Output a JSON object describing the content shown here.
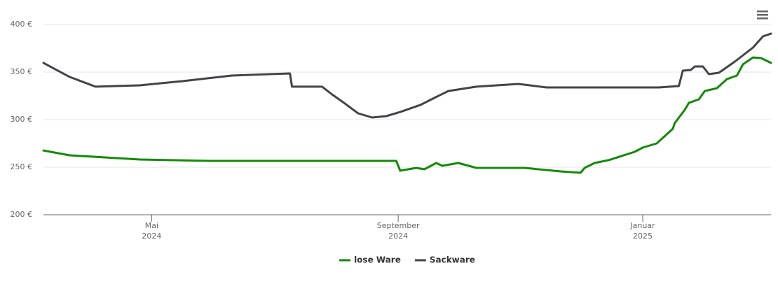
{
  "chart_data": {
    "type": "line",
    "xlim": [
      "2024-03-08",
      "2025-03-06"
    ],
    "xticks": [
      {
        "value": "2024-05-01",
        "label": "Mai",
        "year": "2024"
      },
      {
        "value": "2024-09-01",
        "label": "September",
        "year": "2024"
      },
      {
        "value": "2025-01-01",
        "label": "Januar",
        "year": "2025"
      }
    ],
    "ylim": [
      200,
      400
    ],
    "yticks": [
      {
        "value": 200,
        "label": "200 €"
      },
      {
        "value": 250,
        "label": "250 €"
      },
      {
        "value": 300,
        "label": "300 €"
      },
      {
        "value": 350,
        "label": "350 €"
      },
      {
        "value": 400,
        "label": "400 €"
      }
    ],
    "grid": true,
    "legend": "bottom",
    "series": [
      {
        "name": "lose Ware",
        "color": "#138a07",
        "x": [
          "2024-03-08",
          "2024-03-21",
          "2024-04-25",
          "2024-05-30",
          "2024-08-31",
          "2024-09-02",
          "2024-09-10",
          "2024-09-14",
          "2024-09-20",
          "2024-09-23",
          "2024-10-01",
          "2024-10-10",
          "2024-11-03",
          "2024-11-21",
          "2024-12-01",
          "2024-12-03",
          "2024-12-08",
          "2024-12-15",
          "2024-12-28",
          "2025-01-01",
          "2025-01-08",
          "2025-01-16",
          "2025-01-17",
          "2025-01-22",
          "2025-01-24",
          "2025-01-29",
          "2025-02-01",
          "2025-02-07",
          "2025-02-12",
          "2025-02-17",
          "2025-02-20",
          "2025-02-25",
          "2025-03-01",
          "2025-03-06"
        ],
        "values": [
          267.6,
          262.5,
          258.1,
          256.6,
          256.6,
          246.3,
          249.3,
          247.8,
          254.4,
          251.5,
          254.4,
          249.3,
          249.3,
          245.6,
          244.1,
          249.3,
          254.4,
          257.4,
          266.2,
          270.6,
          275.0,
          290.4,
          296.3,
          310.3,
          317.6,
          321.3,
          330.1,
          333.0,
          342.6,
          346.3,
          358.1,
          365.4,
          364.7,
          359.6
        ]
      },
      {
        "name": "Sackware",
        "color": "#434348",
        "x": [
          "2024-03-08",
          "2024-03-21",
          "2024-04-03",
          "2024-04-25",
          "2024-05-16",
          "2024-06-10",
          "2024-07-09",
          "2024-07-10",
          "2024-07-25",
          "2024-07-30",
          "2024-08-05",
          "2024-08-12",
          "2024-08-19",
          "2024-08-26",
          "2024-09-02",
          "2024-09-12",
          "2024-09-19",
          "2024-09-26",
          "2024-10-10",
          "2024-10-31",
          "2024-11-14",
          "2024-12-08",
          "2025-01-09",
          "2025-01-19",
          "2025-01-21",
          "2025-01-25",
          "2025-01-27",
          "2025-01-31",
          "2025-02-03",
          "2025-02-08",
          "2025-02-16",
          "2025-02-25",
          "2025-03-02",
          "2025-03-06"
        ],
        "values": [
          359.6,
          344.9,
          334.6,
          336.0,
          340.4,
          346.3,
          348.5,
          334.6,
          334.6,
          326.5,
          317.6,
          306.6,
          302.2,
          303.7,
          308.0,
          315.4,
          322.8,
          330.1,
          334.6,
          337.5,
          333.8,
          333.8,
          333.8,
          335.3,
          351.5,
          352.2,
          355.9,
          355.9,
          347.8,
          349.3,
          361.0,
          375.7,
          387.5,
          390.4
        ]
      }
    ]
  }
}
